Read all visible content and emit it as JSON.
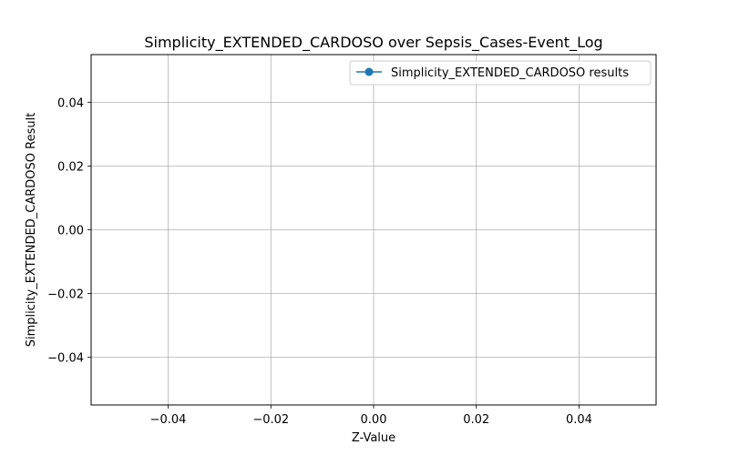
{
  "chart_data": {
    "type": "line",
    "title": "Simplicity_EXTENDED_CARDOSO over Sepsis_Cases-Event_Log",
    "xlabel": "Z-Value",
    "ylabel": "Simplicity_EXTENDED_CARDOSO Result",
    "xlim": [
      -0.055,
      0.055
    ],
    "ylim": [
      -0.055,
      0.055
    ],
    "x_ticks": [
      -0.04,
      -0.02,
      0.0,
      0.02,
      0.04
    ],
    "x_tick_labels": [
      "−0.04",
      "−0.02",
      "0.00",
      "0.02",
      "0.04"
    ],
    "y_ticks": [
      0.04,
      0.02,
      0.0,
      -0.02,
      -0.04
    ],
    "y_tick_labels": [
      "0.04",
      "0.02",
      "0.00",
      "−0.02",
      "−0.04"
    ],
    "grid": true,
    "legend_position": "top-right",
    "series": [
      {
        "name": "Simplicity_EXTENDED_CARDOSO results",
        "color": "#1f77b4",
        "marker": "circle",
        "x": [],
        "y": []
      }
    ]
  }
}
